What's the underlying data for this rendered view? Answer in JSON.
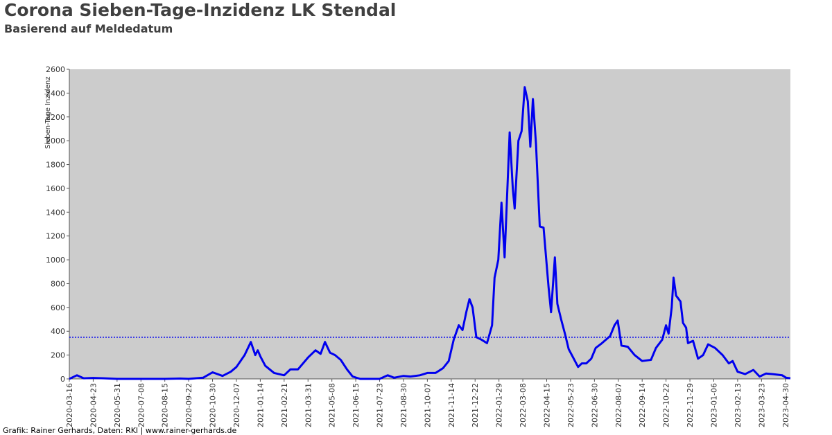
{
  "chart_data": {
    "type": "line",
    "title": "Corona Sieben-Tage-Inzidenz LK Stendal",
    "subtitle": "Basierend auf Meldedatum",
    "y_label": "Sieben-Tage Inzidenz",
    "footer": "Grafik: Rainer Gerhards, Daten: RKI | www.rainer-gerhards.de",
    "xlim": [
      "2020-03-16",
      "2023-05-08"
    ],
    "xticks": [
      "2020-03-16",
      "2020-04-23",
      "2020-05-31",
      "2020-07-08",
      "2020-08-15",
      "2020-09-22",
      "2020-10-30",
      "2020-12-07",
      "2021-01-14",
      "2021-02-21",
      "2021-03-31",
      "2021-05-08",
      "2021-06-15",
      "2021-07-23",
      "2021-08-30",
      "2021-10-07",
      "2021-11-14",
      "2021-12-22",
      "2022-01-29",
      "2022-03-08",
      "2022-04-15",
      "2022-05-23",
      "2022-06-30",
      "2022-08-07",
      "2022-09-14",
      "2022-10-22",
      "2022-11-29",
      "2023-01-06",
      "2023-02-13",
      "2023-03-23",
      "2023-04-30"
    ],
    "ylim": [
      0,
      2600
    ],
    "yticks": [
      0,
      200,
      400,
      600,
      800,
      1000,
      1200,
      1400,
      1600,
      1800,
      2000,
      2200,
      2400,
      2600
    ],
    "threshold": 350,
    "background": "#cccccc",
    "color": "#0000ee",
    "x": [
      "2020-03-16",
      "2020-03-28",
      "2020-04-08",
      "2020-04-23",
      "2020-05-10",
      "2020-05-31",
      "2020-07-08",
      "2020-08-15",
      "2020-09-08",
      "2020-09-22",
      "2020-10-15",
      "2020-10-30",
      "2020-11-15",
      "2020-11-28",
      "2020-12-07",
      "2020-12-20",
      "2020-12-30",
      "2021-01-06",
      "2021-01-10",
      "2021-01-14",
      "2021-01-22",
      "2021-02-05",
      "2021-02-21",
      "2021-03-03",
      "2021-03-15",
      "2021-03-31",
      "2021-04-12",
      "2021-04-20",
      "2021-04-27",
      "2021-05-05",
      "2021-05-13",
      "2021-05-22",
      "2021-06-01",
      "2021-06-10",
      "2021-06-22",
      "2021-07-23",
      "2021-08-05",
      "2021-08-15",
      "2021-08-30",
      "2021-09-10",
      "2021-09-25",
      "2021-10-07",
      "2021-10-20",
      "2021-11-01",
      "2021-11-10",
      "2021-11-18",
      "2021-11-26",
      "2021-12-02",
      "2021-12-08",
      "2021-12-13",
      "2021-12-18",
      "2021-12-24",
      "2022-01-01",
      "2022-01-10",
      "2022-01-18",
      "2022-01-22",
      "2022-01-28",
      "2022-02-02",
      "2022-02-07",
      "2022-02-15",
      "2022-02-20",
      "2022-02-23",
      "2022-03-01",
      "2022-03-06",
      "2022-03-11",
      "2022-03-16",
      "2022-03-20",
      "2022-03-24",
      "2022-03-29",
      "2022-04-04",
      "2022-04-10",
      "2022-04-18",
      "2022-04-22",
      "2022-04-28",
      "2022-05-02",
      "2022-05-08",
      "2022-05-14",
      "2022-05-20",
      "2022-05-27",
      "2022-06-04",
      "2022-06-10",
      "2022-06-17",
      "2022-06-25",
      "2022-07-02",
      "2022-07-12",
      "2022-07-25",
      "2022-08-01",
      "2022-08-06",
      "2022-08-12",
      "2022-08-22",
      "2022-09-02",
      "2022-09-14",
      "2022-09-28",
      "2022-10-06",
      "2022-10-16",
      "2022-10-22",
      "2022-10-26",
      "2022-10-31",
      "2022-11-03",
      "2022-11-07",
      "2022-11-14",
      "2022-11-18",
      "2022-11-23",
      "2022-11-26",
      "2022-12-04",
      "2022-12-12",
      "2022-12-20",
      "2022-12-28",
      "2023-01-08",
      "2023-01-20",
      "2023-01-30",
      "2023-02-05",
      "2023-02-13",
      "2023-02-25",
      "2023-03-10",
      "2023-03-20",
      "2023-03-30",
      "2023-04-10",
      "2023-04-25",
      "2023-05-01",
      "2023-05-08"
    ],
    "values": [
      0,
      30,
      5,
      8,
      5,
      0,
      0,
      0,
      3,
      0,
      10,
      55,
      25,
      60,
      100,
      200,
      310,
      200,
      240,
      190,
      110,
      50,
      30,
      80,
      80,
      180,
      240,
      210,
      310,
      220,
      200,
      160,
      80,
      20,
      0,
      0,
      30,
      10,
      25,
      20,
      30,
      50,
      50,
      90,
      150,
      330,
      450,
      410,
      560,
      670,
      600,
      350,
      330,
      300,
      450,
      850,
      1000,
      1480,
      1020,
      2070,
      1600,
      1430,
      2000,
      2080,
      2450,
      2330,
      1950,
      2350,
      1970,
      1280,
      1270,
      770,
      560,
      1020,
      630,
      500,
      380,
      250,
      180,
      100,
      130,
      130,
      170,
      260,
      300,
      360,
      450,
      490,
      280,
      270,
      200,
      150,
      160,
      260,
      330,
      450,
      380,
      600,
      850,
      700,
      650,
      470,
      430,
      300,
      320,
      170,
      200,
      290,
      260,
      200,
      130,
      150,
      60,
      40,
      75,
      20,
      45,
      40,
      30,
      10,
      5
    ]
  }
}
